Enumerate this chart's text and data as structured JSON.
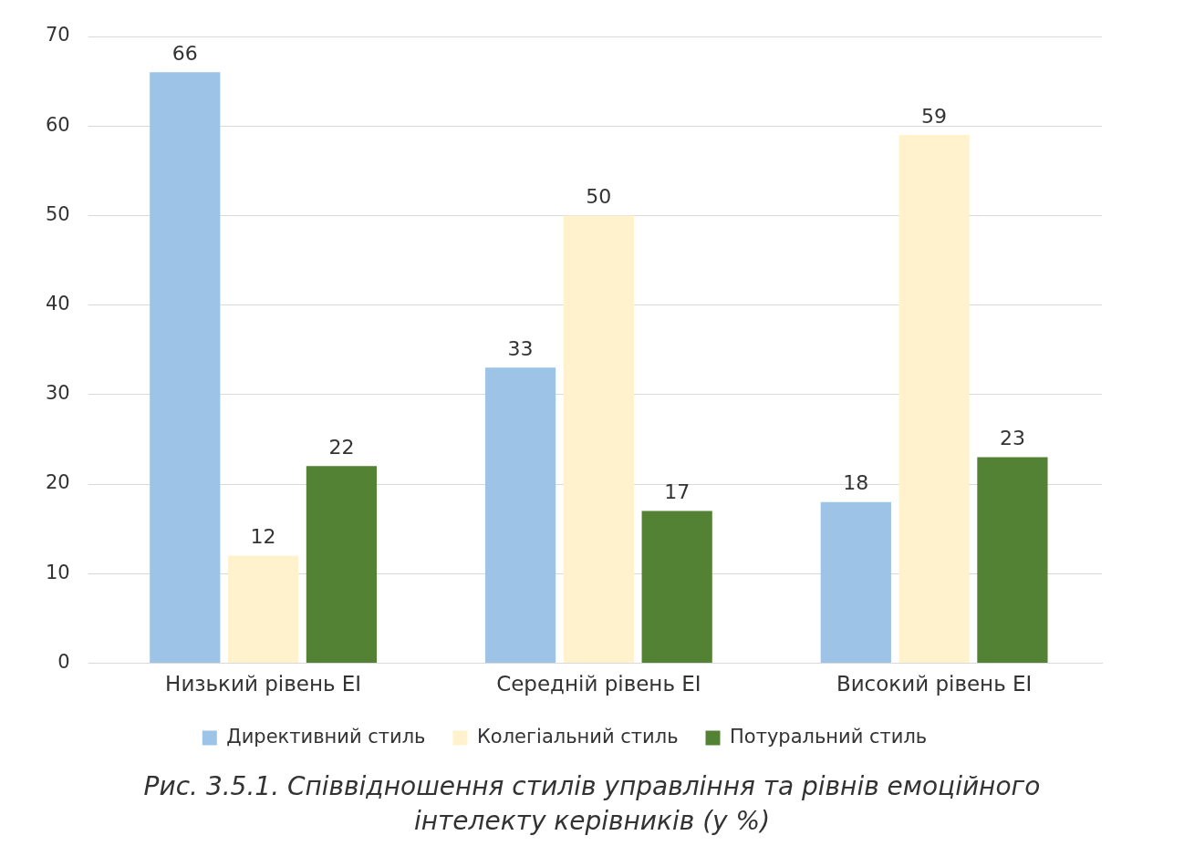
{
  "chart_data": {
    "type": "bar",
    "title": "Рис. 3.5.1. Співвідношення стилів управління та рівнів емоційного інтелекту керівників (у %)",
    "categories": [
      "Низький рівень ЕІ",
      "Середній рівень ЕІ",
      "Високий рівень ЕІ"
    ],
    "series": [
      {
        "name": "Директивний стиль",
        "color": "#9dc3e6",
        "values": [
          66,
          33,
          18
        ]
      },
      {
        "name": "Колегіальний стиль",
        "color": "#fff2cc",
        "values": [
          12,
          50,
          59
        ]
      },
      {
        "name": "Потуральний стиль",
        "color": "#548235",
        "values": [
          22,
          17,
          23
        ]
      }
    ],
    "ylim": [
      0,
      70
    ],
    "yticks": [
      0,
      10,
      20,
      30,
      40,
      50,
      60,
      70
    ],
    "grid": "y",
    "legend": "bottom",
    "data_labels": true
  }
}
